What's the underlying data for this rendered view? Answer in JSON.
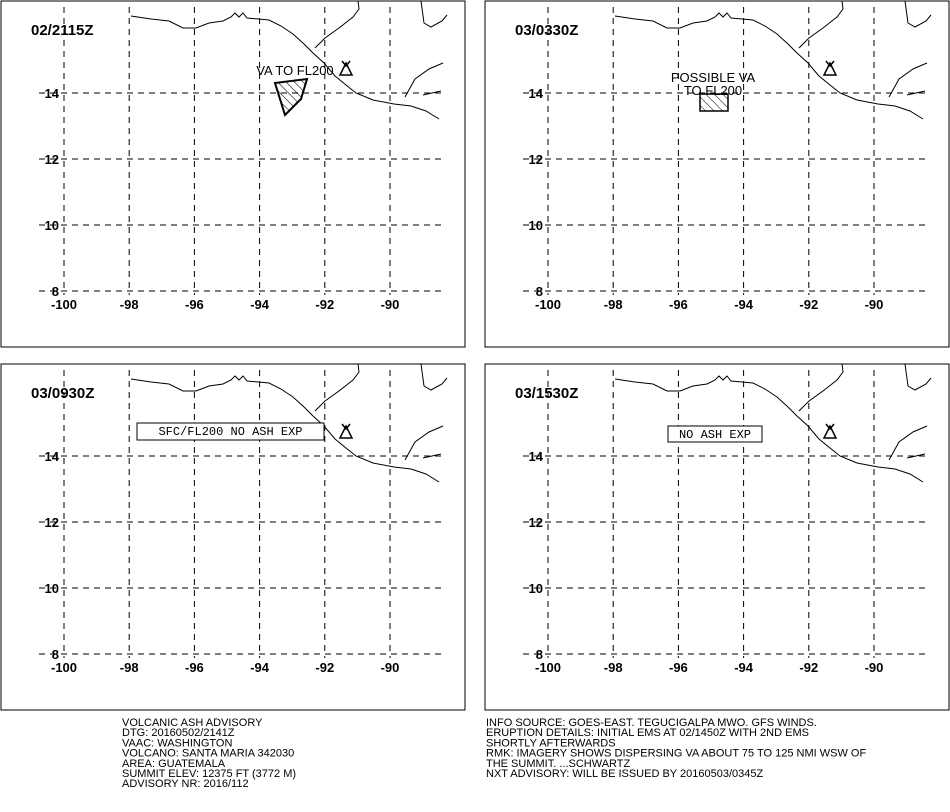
{
  "panels": [
    {
      "time": "02/2115Z",
      "labels": [
        "VA TO FL200"
      ]
    },
    {
      "time": "03/0330Z",
      "labels": [
        "POSSIBLE VA",
        "TO FL200"
      ]
    },
    {
      "time": "03/0930Z",
      "labels": [
        "SFC/FL200 NO ASH EXP"
      ]
    },
    {
      "time": "03/1530Z",
      "labels": [
        "NO ASH EXP"
      ]
    }
  ],
  "xticks": [
    -100,
    -98,
    -96,
    -94,
    -92,
    -90
  ],
  "yticks": [
    8,
    10,
    12,
    14
  ],
  "footer": {
    "left": [
      "VOLCANIC ASH ADVISORY",
      "DTG: 20160502/2141Z",
      "VAAC: WASHINGTON",
      "VOLCANO: SANTA MARIA 342030",
      "AREA: GUATEMALA",
      "SUMMIT ELEV: 12375 FT (3772 M)",
      "ADVISORY NR: 2016/112"
    ],
    "right": [
      "INFO SOURCE: GOES-EAST. TEGUCIGALPA MWO. GFS WINDS.",
      "ERUPTION DETAILS: INITIAL EMS AT 02/1450Z WITH 2ND EMS",
      "SHORTLY AFTERWARDS",
      "RMK: IMAGERY SHOWS DISPERSING VA ABOUT 75 TO 125 NMI WSW OF",
      "THE SUMMIT. ...SCHWARTZ",
      "NXT ADVISORY: WILL BE ISSUED BY 20160503/0345Z"
    ]
  }
}
